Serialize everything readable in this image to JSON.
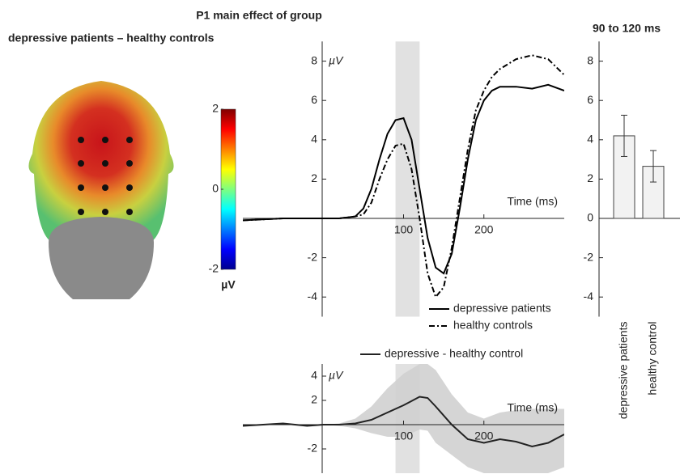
{
  "chart_data": [
    {
      "type": "line",
      "title": "P1 main effect of group",
      "subtitle": "depressive patients – healthy controls",
      "ylabel": "µV",
      "xlabel": "Time (ms)",
      "x": [
        -100,
        -50,
        0,
        20,
        40,
        50,
        60,
        70,
        80,
        90,
        100,
        110,
        120,
        130,
        140,
        150,
        160,
        170,
        180,
        190,
        200,
        210,
        220,
        240,
        260,
        280,
        300
      ],
      "series": [
        {
          "name": "depressive patients",
          "color": "#000000",
          "dash": "solid",
          "values": [
            -0.1,
            0,
            0,
            0,
            0.1,
            0.5,
            1.5,
            3,
            4.3,
            5,
            5.1,
            4,
            1.5,
            -1,
            -2.5,
            -2.8,
            -1.8,
            0.5,
            3,
            5,
            6,
            6.5,
            6.7,
            6.7,
            6.6,
            6.8,
            6.5
          ]
        },
        {
          "name": "healthy controls",
          "color": "#000000",
          "dash": "dashdot",
          "values": [
            -0.1,
            0,
            0,
            0,
            0.1,
            0.2,
            0.8,
            2,
            3,
            3.7,
            3.8,
            2.5,
            0,
            -2.8,
            -4,
            -3.5,
            -1.5,
            1,
            3.5,
            5.5,
            6.5,
            7.2,
            7.6,
            8.1,
            8.3,
            8.1,
            7.3
          ]
        }
      ],
      "xlim": [
        -100,
        300
      ],
      "ylim": [
        -5,
        9
      ],
      "xticks": [
        100,
        200
      ],
      "yticks": [
        8,
        6,
        4,
        2,
        -2,
        -4
      ],
      "highlight": [
        90,
        120
      ],
      "legend": "lower right"
    },
    {
      "type": "line",
      "ylabel": "µV",
      "xlabel": "Time (ms)",
      "x": [
        -100,
        -50,
        -20,
        0,
        20,
        40,
        60,
        80,
        100,
        120,
        130,
        140,
        160,
        180,
        200,
        220,
        240,
        260,
        280,
        300
      ],
      "series": [
        {
          "name": "depressive - healthy control",
          "color": "#222222",
          "dash": "solid",
          "values": [
            -0.1,
            0.1,
            -0.1,
            0,
            0,
            0.1,
            0.4,
            1,
            1.6,
            2.3,
            2.2,
            1.5,
            0,
            -1.2,
            -1.5,
            -1.2,
            -1.4,
            -1.8,
            -1.5,
            -0.8
          ],
          "band_upper": [
            -0.1,
            0.1,
            -0.1,
            0,
            0.1,
            0.5,
            1.5,
            3,
            4.2,
            5,
            5,
            4.5,
            2.5,
            1,
            0.5,
            1,
            1.2,
            1.3,
            1.3,
            1.3
          ],
          "band_lower": [
            -0.1,
            0.1,
            -0.1,
            0,
            -0.1,
            -0.3,
            -0.7,
            -1,
            -1,
            -0.4,
            -0.5,
            -1.5,
            -2.5,
            -3.5,
            -4,
            -4,
            -4,
            -4,
            -4,
            -3.5
          ],
          "band_color": "#d0d0d0"
        }
      ],
      "xlim": [
        -100,
        300
      ],
      "ylim": [
        -4,
        5
      ],
      "xticks": [
        100,
        200
      ],
      "yticks": [
        4,
        2,
        -2
      ],
      "highlight": [
        90,
        120
      ],
      "legend": "upper center"
    },
    {
      "type": "bar",
      "title": "90 to 120 ms",
      "categories": [
        "depressive patients",
        "healthy control"
      ],
      "values": [
        4.2,
        2.65
      ],
      "errors": [
        1.05,
        0.8
      ],
      "color": "#f2f2f2",
      "ylim": [
        -5,
        9
      ],
      "yticks": [
        8,
        6,
        4,
        2,
        0,
        -2,
        -4
      ]
    },
    {
      "type": "colorbar",
      "label": "µV",
      "clim": [
        -2,
        2
      ],
      "ticks": [
        2,
        0,
        -2
      ],
      "colormap": "jet"
    }
  ]
}
